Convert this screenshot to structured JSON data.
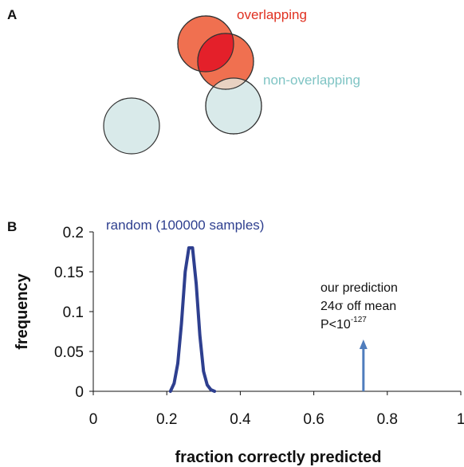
{
  "panel_a": {
    "letter": "A",
    "overlapping_label": "overlapping",
    "non_overlapping_label": "non-overlapping",
    "colors": {
      "overlapping_fill": "#f07050",
      "overlapping_overlap": "#e4202a",
      "overlapping_label": "#e03020",
      "non_overlapping_fill": "#d9eaea",
      "non_overlapping_label": "#7fc4c4",
      "circle_stroke": "#333333",
      "overlap_tint": "#e8d2c2"
    }
  },
  "panel_b": {
    "letter": "B",
    "annotation": {
      "line1": "our prediction",
      "line2_prefix": "24",
      "line2_sigma": "σ",
      "line2_suffix": " off mean",
      "line3_prefix": "P<10",
      "line3_exp": "-127"
    }
  },
  "chart_data": {
    "type": "line",
    "xlabel": "fraction correctly predicted",
    "ylabel": "frequency",
    "xlim": [
      0,
      1
    ],
    "ylim": [
      0,
      0.2
    ],
    "xticks": [
      0,
      0.2,
      0.4,
      0.6,
      0.8,
      1
    ],
    "xtick_labels": [
      "0",
      "0.2",
      "0.4",
      "0.6",
      "0.8",
      "1"
    ],
    "yticks": [
      0,
      0.05,
      0.1,
      0.15,
      0.2
    ],
    "ytick_labels": [
      "0",
      "0.05",
      "0.1",
      "0.15",
      "0.2"
    ],
    "grid": false,
    "series": [
      {
        "name": "random (100000 samples)",
        "color": "#2e3f8f",
        "x": [
          0.21,
          0.22,
          0.23,
          0.24,
          0.25,
          0.26,
          0.27,
          0.28,
          0.29,
          0.3,
          0.31,
          0.32,
          0.33
        ],
        "y": [
          0.0,
          0.01,
          0.035,
          0.085,
          0.15,
          0.18,
          0.18,
          0.135,
          0.07,
          0.025,
          0.008,
          0.002,
          0.0
        ]
      }
    ],
    "marker": {
      "label": "our prediction",
      "x": 0.735,
      "y": 0.065,
      "color": "#4f7dbd"
    }
  }
}
